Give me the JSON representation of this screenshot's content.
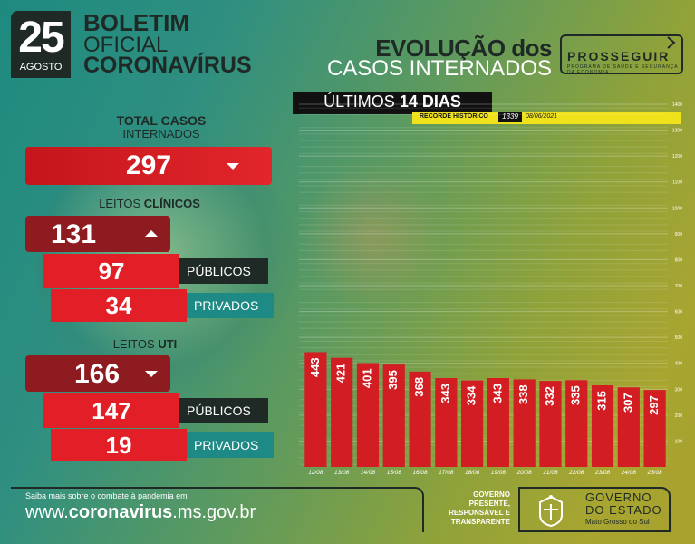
{
  "header": {
    "day": "25",
    "month": "AGOSTO",
    "line1": "BOLETIM",
    "line2": "OFICIAL",
    "line3": "CORONAVÍRUS",
    "evolution_line1": "EVOLUÇÃO dos",
    "evolution_line2": "CASOS INTERNADOS",
    "program_name": "PROSSEGUIR",
    "program_sub": "PROGRAMA DE SAÚDE E SEGURANÇA DA ECONOMIA"
  },
  "summary": {
    "total_label_1": "TOTAL CASOS",
    "total_label_2": "INTERNADOS",
    "total_value": "297",
    "total_trend": "down",
    "clinical_label_prefix": "LEITOS ",
    "clinical_label_strong": "CLÍNICOS",
    "clinical_value": "131",
    "clinical_trend": "up",
    "clinical_public_value": "97",
    "clinical_public_label": "PÚBLICOS",
    "clinical_private_value": "34",
    "clinical_private_label": "PRIVADOS",
    "uti_label_prefix": "LEITOS ",
    "uti_label_strong": "UTI",
    "uti_value": "166",
    "uti_trend": "down",
    "uti_public_value": "147",
    "uti_public_label": "PÚBLICOS",
    "uti_private_value": "19",
    "uti_private_label": "PRIVADOS"
  },
  "chart_header": {
    "title_prefix": "ÚLTIMOS ",
    "title_strong": "14 DIAS",
    "record_label": "RECORDE HISTÓRICO",
    "record_value": "1339",
    "record_date": "08/06/2021"
  },
  "chart_data": {
    "type": "bar",
    "categories": [
      "12/08",
      "13/08",
      "14/08",
      "15/08",
      "16/08",
      "17/08",
      "18/08",
      "19/08",
      "20/08",
      "21/08",
      "22/08",
      "23/08",
      "24/08",
      "25/08"
    ],
    "values": [
      443,
      421,
      401,
      395,
      368,
      343,
      334,
      343,
      338,
      332,
      335,
      315,
      307,
      297
    ],
    "ylim": [
      0,
      1400
    ],
    "yticks": [
      100,
      200,
      300,
      400,
      500,
      600,
      700,
      800,
      900,
      1000,
      1100,
      1200,
      1300,
      1400
    ],
    "grid": true,
    "bar_color": "#d21d22",
    "title": "ÚLTIMOS 14 DIAS"
  },
  "footer": {
    "small_text": "Saiba mais sobre o combate à pandemia em",
    "url_prefix": "www.",
    "url_strong": "coronavirus",
    "url_suffix": ".ms.gov.br",
    "gov_line1": "GOVERNO",
    "gov_line2": "PRESENTE,",
    "gov_line3": "RESPONSÁVEL E",
    "gov_line4": "TRANSPARENTE",
    "gov_name_1": "GOVERNO",
    "gov_name_2": "DO ESTADO",
    "gov_state": "Mato Grosso do Sul"
  },
  "colors": {
    "dark": "#1f2a26",
    "red": "#e21f26",
    "dark_red": "#8e1b1f",
    "teal": "#1e8a85",
    "record_yellow": "#f0e21a"
  }
}
